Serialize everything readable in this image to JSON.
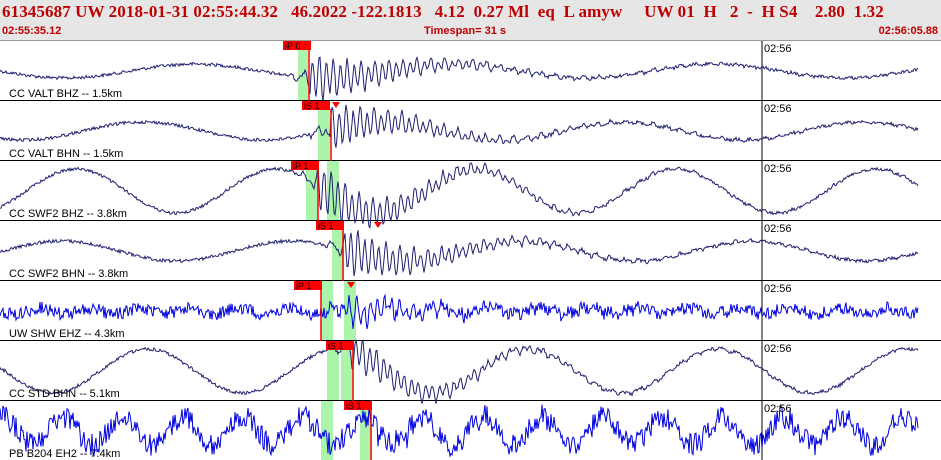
{
  "header": {
    "event_line": "61345687 UW 2018-01-31 02:55:44.32   46.2022 -122.1813   4.12  0.27 Ml  eq  L amyw     UW 01  H   2  -  H S4    2.80  1.32",
    "start_time": "02:55:35.12",
    "timespan": "Timespan=  31 s",
    "end_time": "02:56:05.88"
  },
  "colors": {
    "header_bg": "#e6e6e6",
    "header_text": "#c00000",
    "pick_flag": "#ff0000",
    "window_green": "#aaf5aa",
    "trace_dark": "#1f1f6f",
    "trace_blue": "#0000e0"
  },
  "traces": [
    {
      "label": "CC VALT BHZ -- 1.5km",
      "minute_label": "02:56",
      "pick": "iP 0",
      "pick_type": "P",
      "trace": "dark",
      "flags": [
        "iP 0"
      ]
    },
    {
      "label": "CC VALT BHN -- 1.5km",
      "minute_label": "02:56",
      "pick": "iS 1",
      "pick_type": "S",
      "trace": "dark",
      "flags": [
        "iS 1"
      ]
    },
    {
      "label": "CC SWF2 BHZ -- 3.8km",
      "minute_label": "02:56",
      "pick": "iP 1",
      "pick_type": "P",
      "trace": "dark",
      "flags": [
        "iP 1"
      ]
    },
    {
      "label": "CC SWF2 BHN -- 3.8km",
      "minute_label": "02:56",
      "pick": "iS 1",
      "pick_type": "S",
      "trace": "dark",
      "flags": [
        "iS 1"
      ]
    },
    {
      "label": "UW SHW EHZ -- 4.3km",
      "minute_label": "02:56",
      "pick": "iP 1",
      "pick_type": "P",
      "trace": "blue",
      "flags": [
        "iP 1"
      ]
    },
    {
      "label": "CC STD BHN -- 5.1km",
      "minute_label": "02:56",
      "pick": "iS 1",
      "pick_type": "S",
      "trace": "dark",
      "flags": [
        "iS 1"
      ]
    },
    {
      "label": "PB B204 EH2 -- 7.4km",
      "minute_label": "02:56",
      "pick": "iS 1",
      "pick_type": "S",
      "trace": "blue",
      "flags": [
        "iS 1"
      ]
    }
  ]
}
